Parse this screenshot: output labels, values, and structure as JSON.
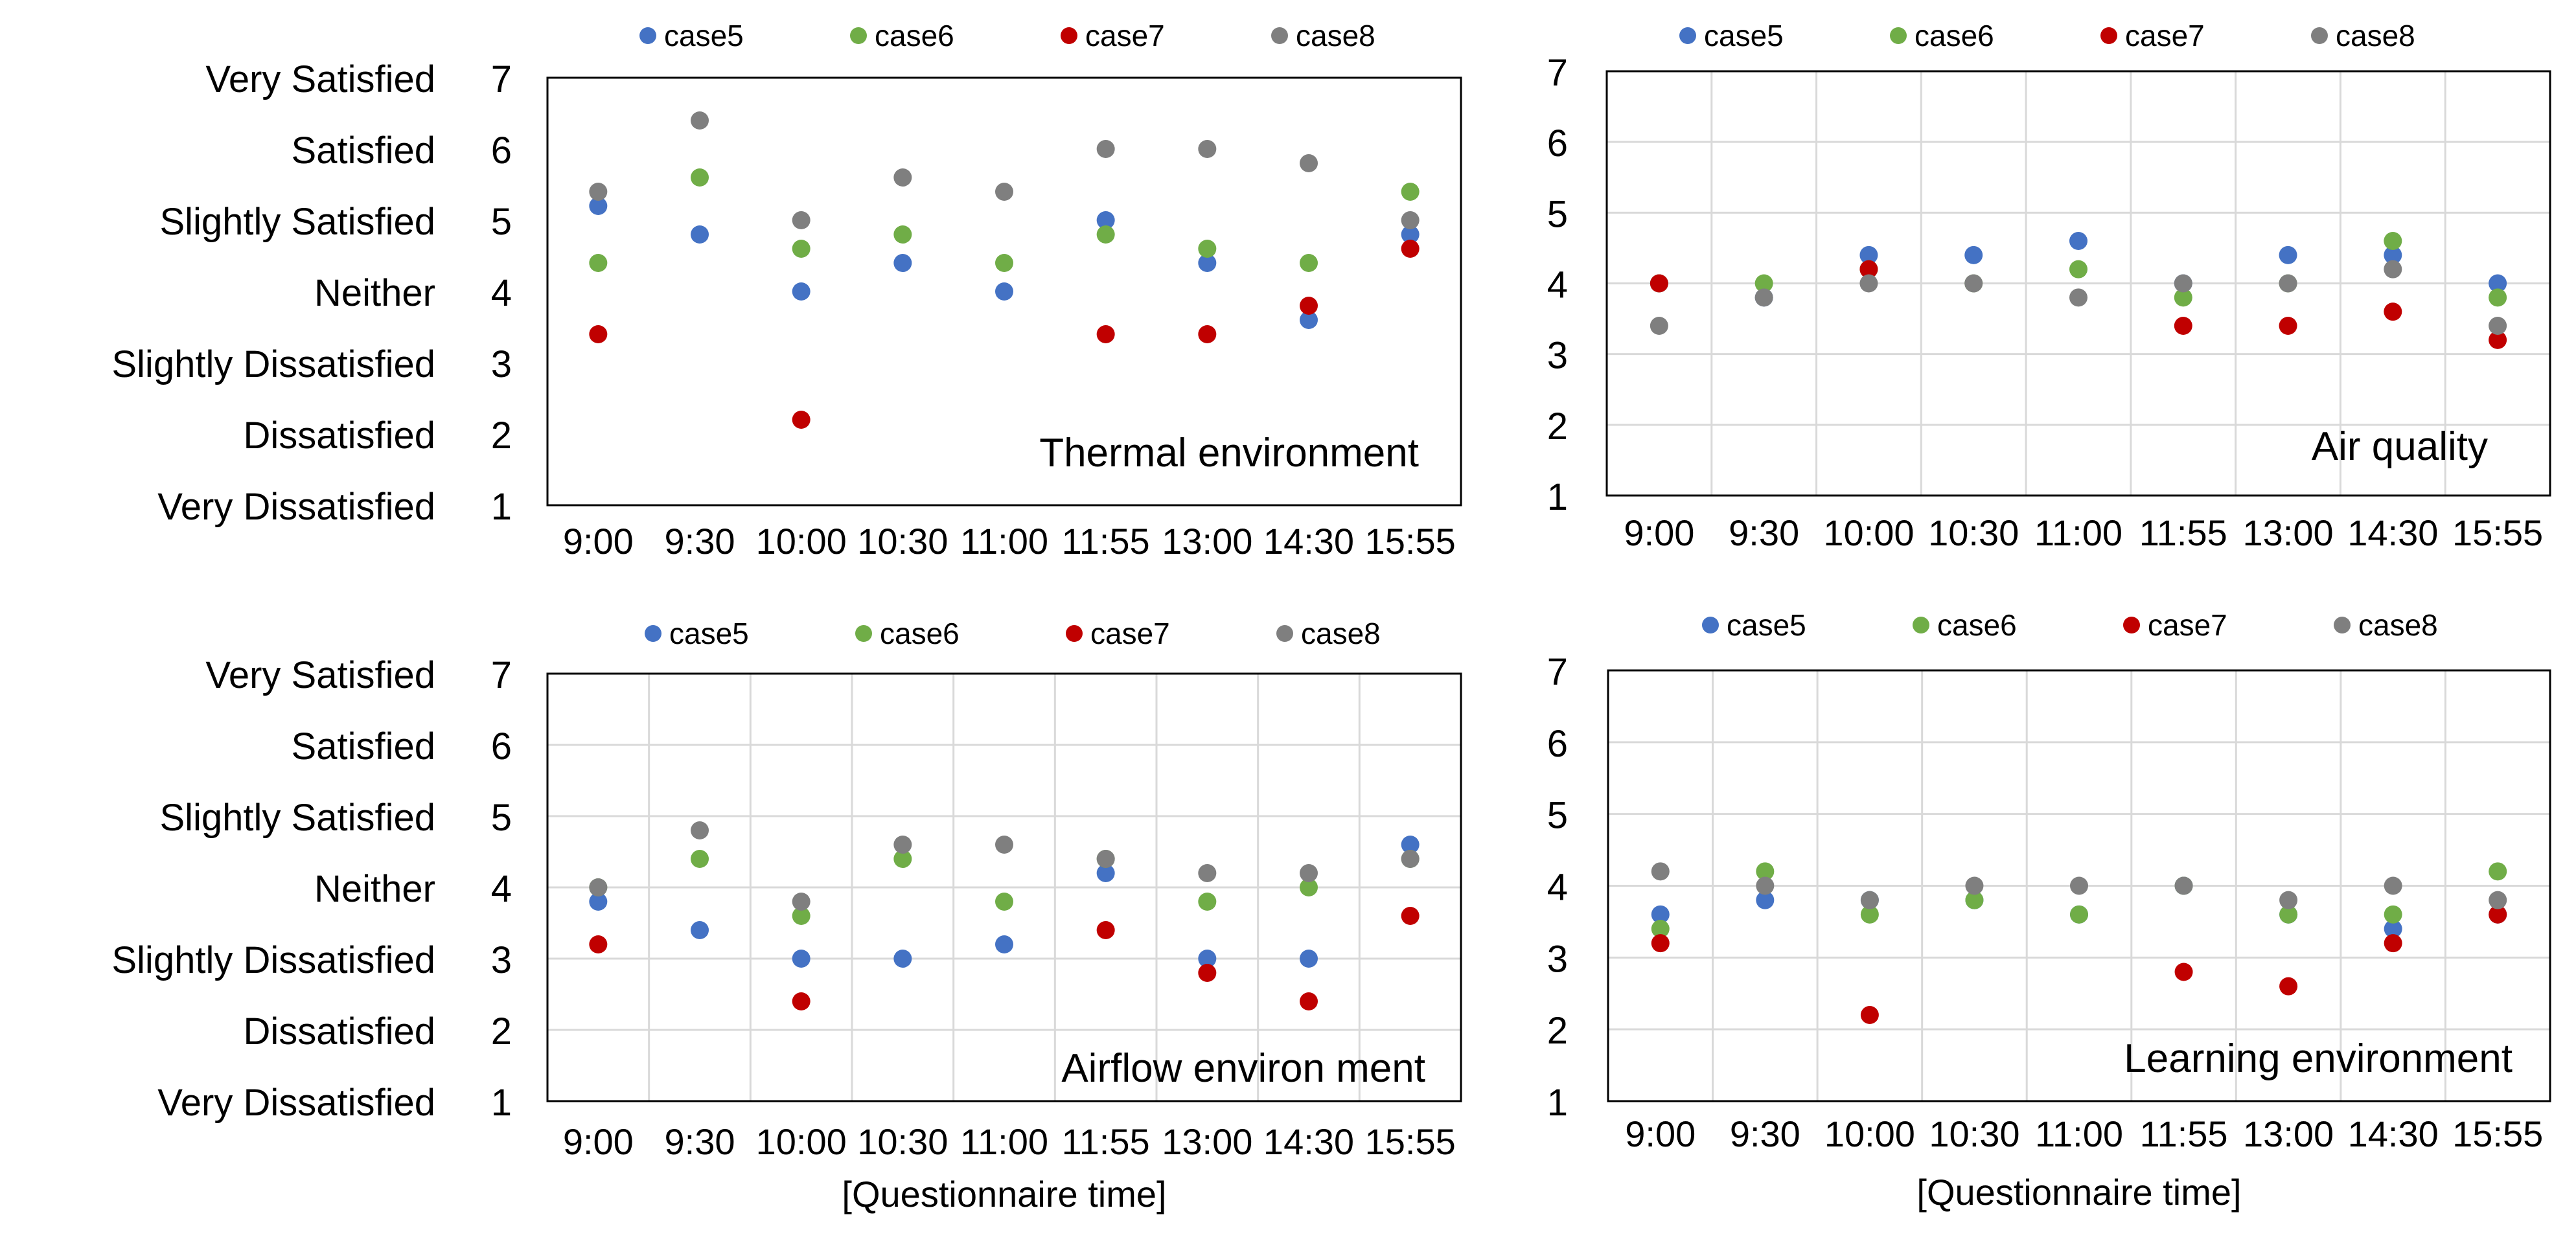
{
  "figure": {
    "colors": {
      "case5": "#4472C4",
      "case6": "#70AD47",
      "case7": "#C00000",
      "case8": "#7F7F7F"
    },
    "satisfaction_labels": [
      "Very Dissatisfied",
      "Dissatisfied",
      "Slightly Dissatisfied",
      "Neither",
      "Slightly Satisfied",
      "Satisfied",
      "Very Satisfied"
    ],
    "xlabel": "[Questionnaire time]"
  },
  "chart_data": [
    {
      "type": "scatter",
      "title": "Thermal  environment",
      "categories": [
        "9:00",
        "9:30",
        "10:00",
        "10:30",
        "11:00",
        "11:55",
        "13:00",
        "14:30",
        "15:55"
      ],
      "ylim": [
        1,
        7
      ],
      "yticks": [
        1,
        2,
        3,
        4,
        5,
        6,
        7
      ],
      "ylabel": "",
      "xlabel": "",
      "grid": false,
      "legend": "top",
      "series": [
        {
          "name": "case5",
          "values": [
            5.2,
            4.8,
            4.0,
            4.4,
            4.0,
            5.0,
            4.4,
            3.6,
            4.8
          ]
        },
        {
          "name": "case6",
          "values": [
            4.4,
            5.6,
            4.6,
            4.8,
            4.4,
            4.8,
            4.6,
            4.4,
            5.4
          ]
        },
        {
          "name": "case7",
          "values": [
            3.4,
            null,
            2.2,
            null,
            null,
            3.4,
            3.4,
            3.8,
            4.6
          ]
        },
        {
          "name": "case8",
          "values": [
            5.4,
            6.4,
            5.0,
            5.6,
            5.4,
            6.0,
            6.0,
            5.8,
            5.0
          ]
        }
      ]
    },
    {
      "type": "scatter",
      "title": "Air quality",
      "categories": [
        "9:00",
        "9:30",
        "10:00",
        "10:30",
        "11:00",
        "11:55",
        "13:00",
        "14:30",
        "15:55"
      ],
      "ylim": [
        1,
        7
      ],
      "yticks": [
        1,
        2,
        3,
        4,
        5,
        6,
        7
      ],
      "ylabel": "",
      "xlabel": "",
      "grid": true,
      "legend": "top",
      "series": [
        {
          "name": "case5",
          "values": [
            4.0,
            3.8,
            4.4,
            4.4,
            4.6,
            4.0,
            4.4,
            4.4,
            4.0
          ]
        },
        {
          "name": "case6",
          "values": [
            4.0,
            4.0,
            4.2,
            4.0,
            4.2,
            3.8,
            4.0,
            4.6,
            3.8
          ]
        },
        {
          "name": "case7",
          "values": [
            4.0,
            null,
            4.2,
            null,
            null,
            3.4,
            3.4,
            3.6,
            3.2
          ]
        },
        {
          "name": "case8",
          "values": [
            3.4,
            3.8,
            4.0,
            4.0,
            3.8,
            4.0,
            4.0,
            4.2,
            3.4
          ]
        }
      ]
    },
    {
      "type": "scatter",
      "title": "Airflow  environ ment",
      "categories": [
        "9:00",
        "9:30",
        "10:00",
        "10:30",
        "11:00",
        "11:55",
        "13:00",
        "14:30",
        "15:55"
      ],
      "ylim": [
        1,
        7
      ],
      "yticks": [
        1,
        2,
        3,
        4,
        5,
        6,
        7
      ],
      "ylabel": "",
      "xlabel": "[Questionnaire time]",
      "grid": true,
      "legend": "top",
      "series": [
        {
          "name": "case5",
          "values": [
            3.8,
            3.4,
            3.0,
            3.0,
            3.2,
            4.2,
            3.0,
            3.0,
            4.6
          ]
        },
        {
          "name": "case6",
          "values": [
            4.0,
            4.4,
            3.6,
            4.4,
            3.8,
            4.4,
            3.8,
            4.0,
            4.4
          ]
        },
        {
          "name": "case7",
          "values": [
            3.2,
            null,
            2.4,
            null,
            null,
            3.4,
            2.8,
            2.4,
            3.6
          ]
        },
        {
          "name": "case8",
          "values": [
            4.0,
            4.8,
            3.8,
            4.6,
            4.6,
            4.4,
            4.2,
            4.2,
            4.4
          ]
        }
      ]
    },
    {
      "type": "scatter",
      "title": "Learning  environment",
      "categories": [
        "9:00",
        "9:30",
        "10:00",
        "10:30",
        "11:00",
        "11:55",
        "13:00",
        "14:30",
        "15:55"
      ],
      "ylim": [
        1,
        7
      ],
      "yticks": [
        1,
        2,
        3,
        4,
        5,
        6,
        7
      ],
      "ylabel": "",
      "xlabel": "[Questionnaire time]",
      "grid": true,
      "legend": "top",
      "series": [
        {
          "name": "case5",
          "values": [
            3.6,
            3.8,
            3.8,
            3.8,
            3.6,
            4.0,
            3.6,
            3.4,
            3.6
          ]
        },
        {
          "name": "case6",
          "values": [
            3.4,
            4.2,
            3.6,
            3.8,
            3.6,
            4.0,
            3.6,
            3.6,
            4.2
          ]
        },
        {
          "name": "case7",
          "values": [
            3.2,
            null,
            2.2,
            null,
            null,
            2.8,
            2.6,
            3.2,
            3.6
          ]
        },
        {
          "name": "case8",
          "values": [
            4.2,
            4.0,
            3.8,
            4.0,
            4.0,
            4.0,
            3.8,
            4.0,
            3.8
          ]
        }
      ]
    }
  ]
}
